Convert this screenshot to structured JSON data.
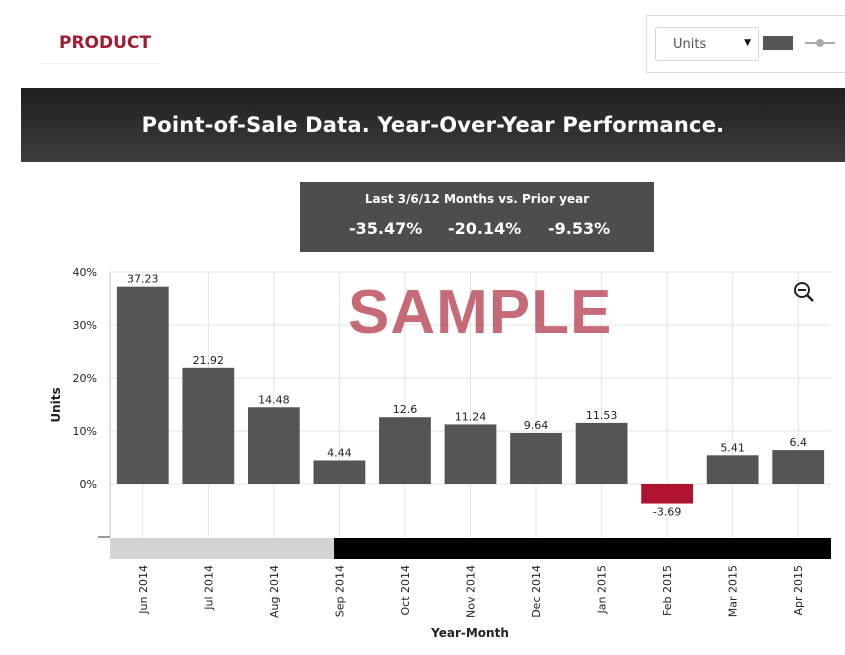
{
  "header": {
    "product_label": "PRODUCT",
    "unit_select": {
      "value": "Units",
      "options": [
        "Units"
      ]
    },
    "bar_toggle_icon": "bar-chart-icon",
    "line_toggle_icon": "line-chart-icon"
  },
  "title": "Point-of-Sale Data. Year-Over-Year Performance.",
  "summary": {
    "label": "Last 3/6/12 Months vs. Prior year",
    "values": [
      "-35.47%",
      "-20.14%",
      "-9.53%"
    ]
  },
  "watermark": "SAMPLE",
  "zoom_icon": "zoom-out-icon",
  "colors": {
    "accent": "#a01c33",
    "bar": "#555555",
    "negative_bar": "#b0132f",
    "title_bar": "#2a2a2a",
    "navigator_track": "#000000",
    "navigator_window": "#d3d3d3"
  },
  "chart_data": {
    "type": "bar",
    "categories": [
      "Jun 2014",
      "Jul 2014",
      "Aug 2014",
      "Sep 2014",
      "Oct 2014",
      "Nov 2014",
      "Dec 2014",
      "Jan 2015",
      "Feb 2015",
      "Mar 2015",
      "Apr 2015"
    ],
    "values": [
      37.23,
      21.92,
      14.48,
      4.44,
      12.6,
      11.24,
      9.64,
      11.53,
      -3.69,
      5.41,
      6.4
    ],
    "value_labels": [
      "37.23",
      "21.92",
      "14.48",
      "4.44",
      "12.6",
      "11.24",
      "9.64",
      "11.53",
      "-3.69",
      "5.41",
      "6.4"
    ],
    "xlabel": "Year-Month",
    "ylabel": "Units",
    "yticks": [
      0,
      10,
      20,
      30,
      40
    ],
    "ytick_labels": [
      "0%",
      "10%",
      "20%",
      "30%",
      "40%"
    ],
    "ylim": [
      -10,
      40
    ],
    "grid": true,
    "navigator": {
      "visible": true
    }
  }
}
